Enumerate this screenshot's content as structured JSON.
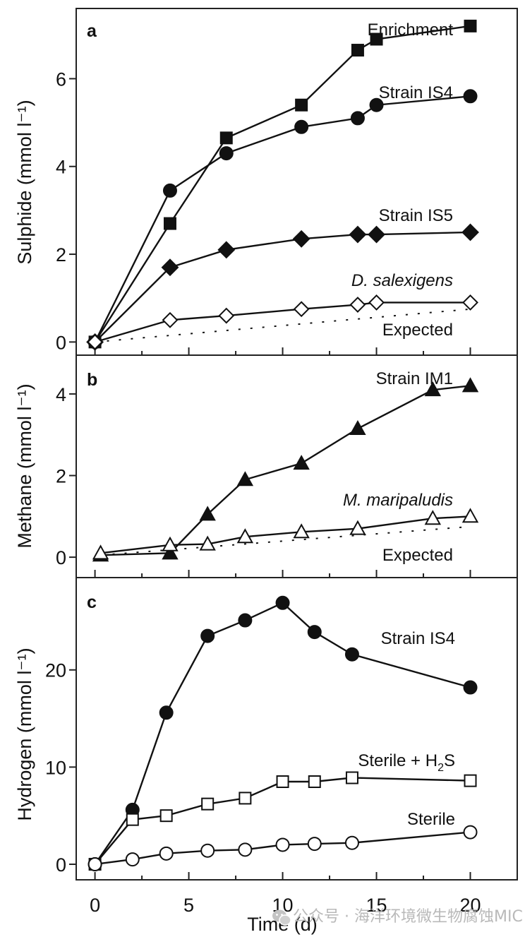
{
  "chart_data": [
    {
      "panel": "a",
      "type": "line",
      "ylabel": "Sulphide (mmol l⁻¹)",
      "xlabel": "",
      "ylim": [
        -0.3,
        7.6
      ],
      "yticks": [
        0,
        2,
        4,
        6
      ],
      "xlim": [
        -1,
        22.5
      ],
      "series": [
        {
          "name": "Enrichment",
          "marker": "square-filled",
          "italic": false,
          "x": [
            0,
            4,
            7,
            11,
            14,
            15,
            20
          ],
          "y": [
            0,
            2.7,
            4.65,
            5.4,
            6.65,
            6.9,
            7.2
          ]
        },
        {
          "name": "Strain IS4",
          "marker": "circle-filled",
          "italic": false,
          "x": [
            0,
            4,
            7,
            11,
            14,
            15,
            20
          ],
          "y": [
            0,
            3.45,
            4.3,
            4.9,
            5.1,
            5.4,
            5.6
          ]
        },
        {
          "name": "Strain IS5",
          "marker": "diamond-filled",
          "italic": false,
          "x": [
            0,
            4,
            7,
            11,
            14,
            15,
            20
          ],
          "y": [
            0,
            1.7,
            2.1,
            2.35,
            2.45,
            2.45,
            2.5
          ]
        },
        {
          "name": "D. salexigens",
          "marker": "diamond-open",
          "italic": true,
          "x": [
            0,
            4,
            7,
            11,
            14,
            15,
            20
          ],
          "y": [
            0,
            0.5,
            0.6,
            0.75,
            0.85,
            0.9,
            0.9
          ]
        },
        {
          "name": "Expected",
          "marker": "none",
          "line": "dotted",
          "italic": false,
          "x": [
            0,
            20
          ],
          "y": [
            0,
            0.75
          ]
        }
      ]
    },
    {
      "panel": "b",
      "type": "line",
      "ylabel": "Methane (mmol l⁻¹)",
      "xlabel": "",
      "ylim": [
        -0.5,
        4.95
      ],
      "yticks": [
        0,
        2,
        4
      ],
      "xlim": [
        -1,
        22.5
      ],
      "series": [
        {
          "name": "Strain IM1",
          "marker": "triangle-filled",
          "italic": false,
          "x": [
            0.3,
            4,
            6,
            8,
            11,
            14,
            18,
            20
          ],
          "y": [
            0.05,
            0.1,
            1.05,
            1.9,
            2.3,
            3.15,
            4.1,
            4.2
          ]
        },
        {
          "name": "M. maripaludis",
          "marker": "triangle-open",
          "italic": true,
          "x": [
            0.3,
            4,
            6,
            8,
            11,
            14,
            18,
            20
          ],
          "y": [
            0.1,
            0.3,
            0.32,
            0.5,
            0.62,
            0.7,
            0.95,
            1.0
          ]
        },
        {
          "name": "Expected",
          "marker": "none",
          "line": "dotted",
          "italic": false,
          "x": [
            0.3,
            20
          ],
          "y": [
            0.05,
            0.75
          ]
        }
      ]
    },
    {
      "panel": "c",
      "type": "line",
      "ylabel": "Hydrogen (mmol l⁻¹)",
      "xlabel": "Time (d)",
      "ylim": [
        -1.6,
        29.5
      ],
      "yticks": [
        0,
        10,
        20
      ],
      "xlim": [
        -1,
        22.5
      ],
      "xticks": [
        0,
        5,
        10,
        15,
        20
      ],
      "series": [
        {
          "name": "Strain IS4",
          "marker": "circle-filled",
          "italic": false,
          "x": [
            0,
            2,
            3.8,
            6,
            8,
            10,
            11.7,
            13.7,
            20
          ],
          "y": [
            0,
            5.6,
            15.6,
            23.5,
            25.1,
            26.9,
            23.9,
            21.6,
            18.2
          ]
        },
        {
          "name": "Sterile + H₂S",
          "marker": "square-open",
          "italic": false,
          "x": [
            0,
            2,
            3.8,
            6,
            8,
            10,
            11.7,
            13.7,
            20
          ],
          "y": [
            0,
            4.6,
            5.0,
            6.2,
            6.8,
            8.5,
            8.5,
            8.9,
            8.6
          ]
        },
        {
          "name": "Sterile",
          "marker": "circle-open",
          "italic": false,
          "x": [
            0,
            2,
            3.8,
            6,
            8,
            10,
            11.7,
            13.7,
            20
          ],
          "y": [
            0,
            0.5,
            1.1,
            1.4,
            1.5,
            2.0,
            2.1,
            2.2,
            3.3
          ]
        }
      ]
    }
  ],
  "labels": {
    "panel_a": "a",
    "panel_b": "b",
    "panel_c": "c",
    "a_enrichment": "Enrichment",
    "a_is4": "Strain IS4",
    "a_is5": "Strain IS5",
    "a_dsal": "D. salexigens",
    "a_expected": "Expected",
    "b_im1": "Strain IM1",
    "b_mmar": "M. maripaludis",
    "b_expected": "Expected",
    "c_is4": "Strain IS4",
    "c_sterile_h2s_pre": "Sterile + H",
    "c_sterile_h2s_sub": "2",
    "c_sterile_h2s_post": "S",
    "c_sterile": "Sterile",
    "a_ylabel": "Sulphide (mmol l⁻¹)",
    "b_ylabel": "Methane (mmol l⁻¹)",
    "c_ylabel": "Hydrogen (mmol l⁻¹)",
    "xlabel": "Time (d)"
  },
  "ticks": {
    "a": [
      "0",
      "2",
      "4",
      "6"
    ],
    "b": [
      "0",
      "2",
      "4"
    ],
    "c": [
      "0",
      "10",
      "20"
    ],
    "x": [
      "0",
      "5",
      "10",
      "15",
      "20"
    ]
  },
  "watermark": "公众号 · 海洋环境微生物腐蚀MIC"
}
